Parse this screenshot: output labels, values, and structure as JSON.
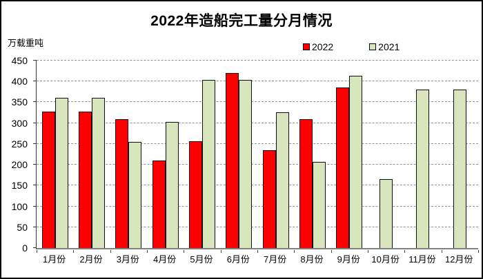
{
  "chart_data": {
    "type": "bar",
    "title": "2022年造船完工量分月情况",
    "unit_label": "万载重吨",
    "categories": [
      "1月份",
      "2月份",
      "3月份",
      "4月份",
      "5月份",
      "6月份",
      "7月份",
      "8月份",
      "9月份",
      "10月份",
      "11月份",
      "12月份"
    ],
    "series": [
      {
        "name": "2022",
        "color": "#FF0000",
        "values": [
          327,
          327,
          309,
          210,
          256,
          421,
          235,
          309,
          386,
          null,
          null,
          null
        ]
      },
      {
        "name": "2021",
        "color": "#D8E4BC",
        "values": [
          361,
          361,
          255,
          302,
          404,
          404,
          326,
          207,
          414,
          166,
          381,
          381
        ]
      }
    ],
    "ylim": [
      0,
      450
    ],
    "yticks": [
      0,
      50,
      100,
      150,
      200,
      250,
      300,
      350,
      400,
      450
    ],
    "grid": "horizontal-dashed",
    "legend_position": "top-right",
    "bar_border_color": "#0d0d0d"
  }
}
